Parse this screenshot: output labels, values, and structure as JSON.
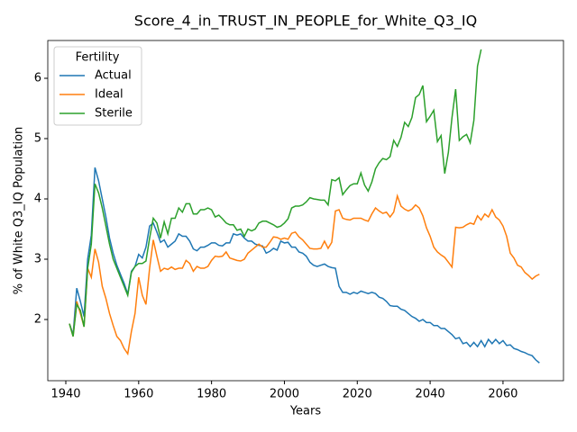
{
  "chart_data": {
    "type": "line",
    "title": "Score_4_in_TRUST_IN_PEOPLE_for_White_Q3_IQ",
    "x_label": "Years",
    "y_label": "% of White Q3_IQ Population",
    "legend_title": "Fertility",
    "legend": "upper left",
    "x": [
      1941,
      1942,
      1943,
      1944,
      1945,
      1946,
      1947,
      1948,
      1949,
      1950,
      1951,
      1952,
      1953,
      1954,
      1955,
      1956,
      1957,
      1958,
      1959,
      1960,
      1961,
      1962,
      1963,
      1964,
      1965,
      1966,
      1967,
      1968,
      1969,
      1970,
      1971,
      1972,
      1973,
      1974,
      1975,
      1976,
      1977,
      1978,
      1979,
      1980,
      1981,
      1982,
      1983,
      1984,
      1985,
      1986,
      1987,
      1988,
      1989,
      1990,
      1991,
      1992,
      1993,
      1994,
      1995,
      1996,
      1997,
      1998,
      1999,
      2000,
      2001,
      2002,
      2003,
      2004,
      2005,
      2006,
      2007,
      2008,
      2009,
      2010,
      2011,
      2012,
      2013,
      2014,
      2015,
      2016,
      2017,
      2018,
      2019,
      2020,
      2021,
      2022,
      2023,
      2024,
      2025,
      2026,
      2027,
      2028,
      2029,
      2030,
      2031,
      2032,
      2033,
      2034,
      2035,
      2036,
      2037,
      2038,
      2039,
      2040,
      2041,
      2042,
      2043,
      2044,
      2045,
      2046,
      2047,
      2048,
      2049,
      2050,
      2051,
      2052,
      2053,
      2054,
      2055,
      2056,
      2057,
      2058,
      2059,
      2060,
      2061,
      2062,
      2063,
      2064,
      2065,
      2066,
      2067,
      2068,
      2069,
      2070
    ],
    "series": [
      {
        "name": "Actual",
        "color": "#1f77b4",
        "values": [
          1.93,
          1.75,
          2.52,
          2.3,
          2.05,
          3.0,
          3.4,
          4.52,
          4.3,
          4.0,
          3.7,
          3.35,
          3.1,
          2.9,
          2.75,
          2.6,
          2.42,
          2.8,
          2.88,
          3.08,
          3.02,
          3.2,
          3.55,
          3.6,
          3.45,
          3.28,
          3.32,
          3.2,
          3.25,
          3.3,
          3.42,
          3.38,
          3.38,
          3.3,
          3.17,
          3.14,
          3.2,
          3.2,
          3.23,
          3.27,
          3.27,
          3.23,
          3.22,
          3.27,
          3.27,
          3.42,
          3.4,
          3.42,
          3.35,
          3.3,
          3.3,
          3.25,
          3.23,
          3.22,
          3.1,
          3.13,
          3.18,
          3.15,
          3.3,
          3.27,
          3.28,
          3.2,
          3.2,
          3.12,
          3.1,
          3.05,
          2.95,
          2.9,
          2.88,
          2.9,
          2.92,
          2.88,
          2.86,
          2.85,
          2.55,
          2.45,
          2.45,
          2.42,
          2.45,
          2.43,
          2.47,
          2.45,
          2.43,
          2.45,
          2.43,
          2.37,
          2.35,
          2.3,
          2.23,
          2.22,
          2.22,
          2.17,
          2.15,
          2.1,
          2.05,
          2.02,
          1.97,
          2.0,
          1.95,
          1.95,
          1.9,
          1.9,
          1.85,
          1.85,
          1.8,
          1.75,
          1.68,
          1.7,
          1.6,
          1.62,
          1.55,
          1.62,
          1.55,
          1.65,
          1.55,
          1.67,
          1.6,
          1.67,
          1.6,
          1.65,
          1.57,
          1.58,
          1.52,
          1.5,
          1.47,
          1.45,
          1.42,
          1.4,
          1.33,
          1.28
        ]
      },
      {
        "name": "Ideal",
        "color": "#ff7f0e",
        "values": [
          1.93,
          1.72,
          2.3,
          2.1,
          1.88,
          2.85,
          2.7,
          3.17,
          2.95,
          2.55,
          2.35,
          2.1,
          1.9,
          1.72,
          1.65,
          1.52,
          1.43,
          1.8,
          2.1,
          2.7,
          2.4,
          2.25,
          2.85,
          3.32,
          3.05,
          2.8,
          2.85,
          2.83,
          2.87,
          2.83,
          2.85,
          2.85,
          2.98,
          2.93,
          2.8,
          2.88,
          2.85,
          2.85,
          2.88,
          2.98,
          3.05,
          3.04,
          3.05,
          3.12,
          3.02,
          3.0,
          2.98,
          2.97,
          3.0,
          3.1,
          3.15,
          3.2,
          3.25,
          3.2,
          3.2,
          3.28,
          3.37,
          3.36,
          3.33,
          3.35,
          3.33,
          3.43,
          3.45,
          3.37,
          3.32,
          3.25,
          3.18,
          3.17,
          3.17,
          3.18,
          3.3,
          3.18,
          3.28,
          3.8,
          3.82,
          3.68,
          3.66,
          3.65,
          3.68,
          3.68,
          3.68,
          3.65,
          3.63,
          3.75,
          3.85,
          3.8,
          3.76,
          3.78,
          3.7,
          3.78,
          4.05,
          3.88,
          3.83,
          3.8,
          3.83,
          3.9,
          3.85,
          3.72,
          3.52,
          3.38,
          3.2,
          3.12,
          3.07,
          3.03,
          2.95,
          2.87,
          3.53,
          3.52,
          3.53,
          3.57,
          3.6,
          3.58,
          3.72,
          3.65,
          3.75,
          3.7,
          3.82,
          3.7,
          3.65,
          3.55,
          3.38,
          3.1,
          3.02,
          2.9,
          2.87,
          2.78,
          2.73,
          2.67,
          2.72,
          2.75
        ]
      },
      {
        "name": "Sterile",
        "color": "#2ca02c",
        "values": [
          1.93,
          1.72,
          2.25,
          2.15,
          1.88,
          2.85,
          3.25,
          4.25,
          4.1,
          3.85,
          3.55,
          3.25,
          3.0,
          2.85,
          2.7,
          2.55,
          2.4,
          2.78,
          2.88,
          2.93,
          2.93,
          2.97,
          3.35,
          3.68,
          3.6,
          3.35,
          3.62,
          3.42,
          3.68,
          3.68,
          3.85,
          3.78,
          3.92,
          3.92,
          3.75,
          3.75,
          3.82,
          3.82,
          3.85,
          3.82,
          3.7,
          3.73,
          3.67,
          3.6,
          3.57,
          3.57,
          3.48,
          3.5,
          3.38,
          3.5,
          3.47,
          3.5,
          3.6,
          3.63,
          3.63,
          3.6,
          3.57,
          3.53,
          3.55,
          3.6,
          3.67,
          3.85,
          3.88,
          3.88,
          3.9,
          3.95,
          4.02,
          4.0,
          3.99,
          3.98,
          3.98,
          3.9,
          4.32,
          4.3,
          4.35,
          4.07,
          4.15,
          4.22,
          4.25,
          4.25,
          4.43,
          4.23,
          4.13,
          4.28,
          4.5,
          4.6,
          4.67,
          4.65,
          4.7,
          4.97,
          4.87,
          5.02,
          5.27,
          5.2,
          5.35,
          5.68,
          5.73,
          5.88,
          5.28,
          5.37,
          5.47,
          4.95,
          5.05,
          4.42,
          4.77,
          5.35,
          5.82,
          4.97,
          5.03,
          5.07,
          4.93,
          5.3,
          6.2,
          6.48,
          null,
          null,
          null,
          null,
          null,
          null,
          null,
          null,
          null,
          null,
          null,
          null,
          null,
          null,
          null,
          null
        ]
      }
    ],
    "xlim": [
      1935.05,
      2076.6
    ],
    "xticks": [
      1940,
      1960,
      1980,
      2000,
      2020,
      2040,
      2060
    ],
    "ylim": [
      0.985,
      6.627
    ],
    "yticks": [
      2,
      3,
      4,
      5,
      6
    ]
  }
}
